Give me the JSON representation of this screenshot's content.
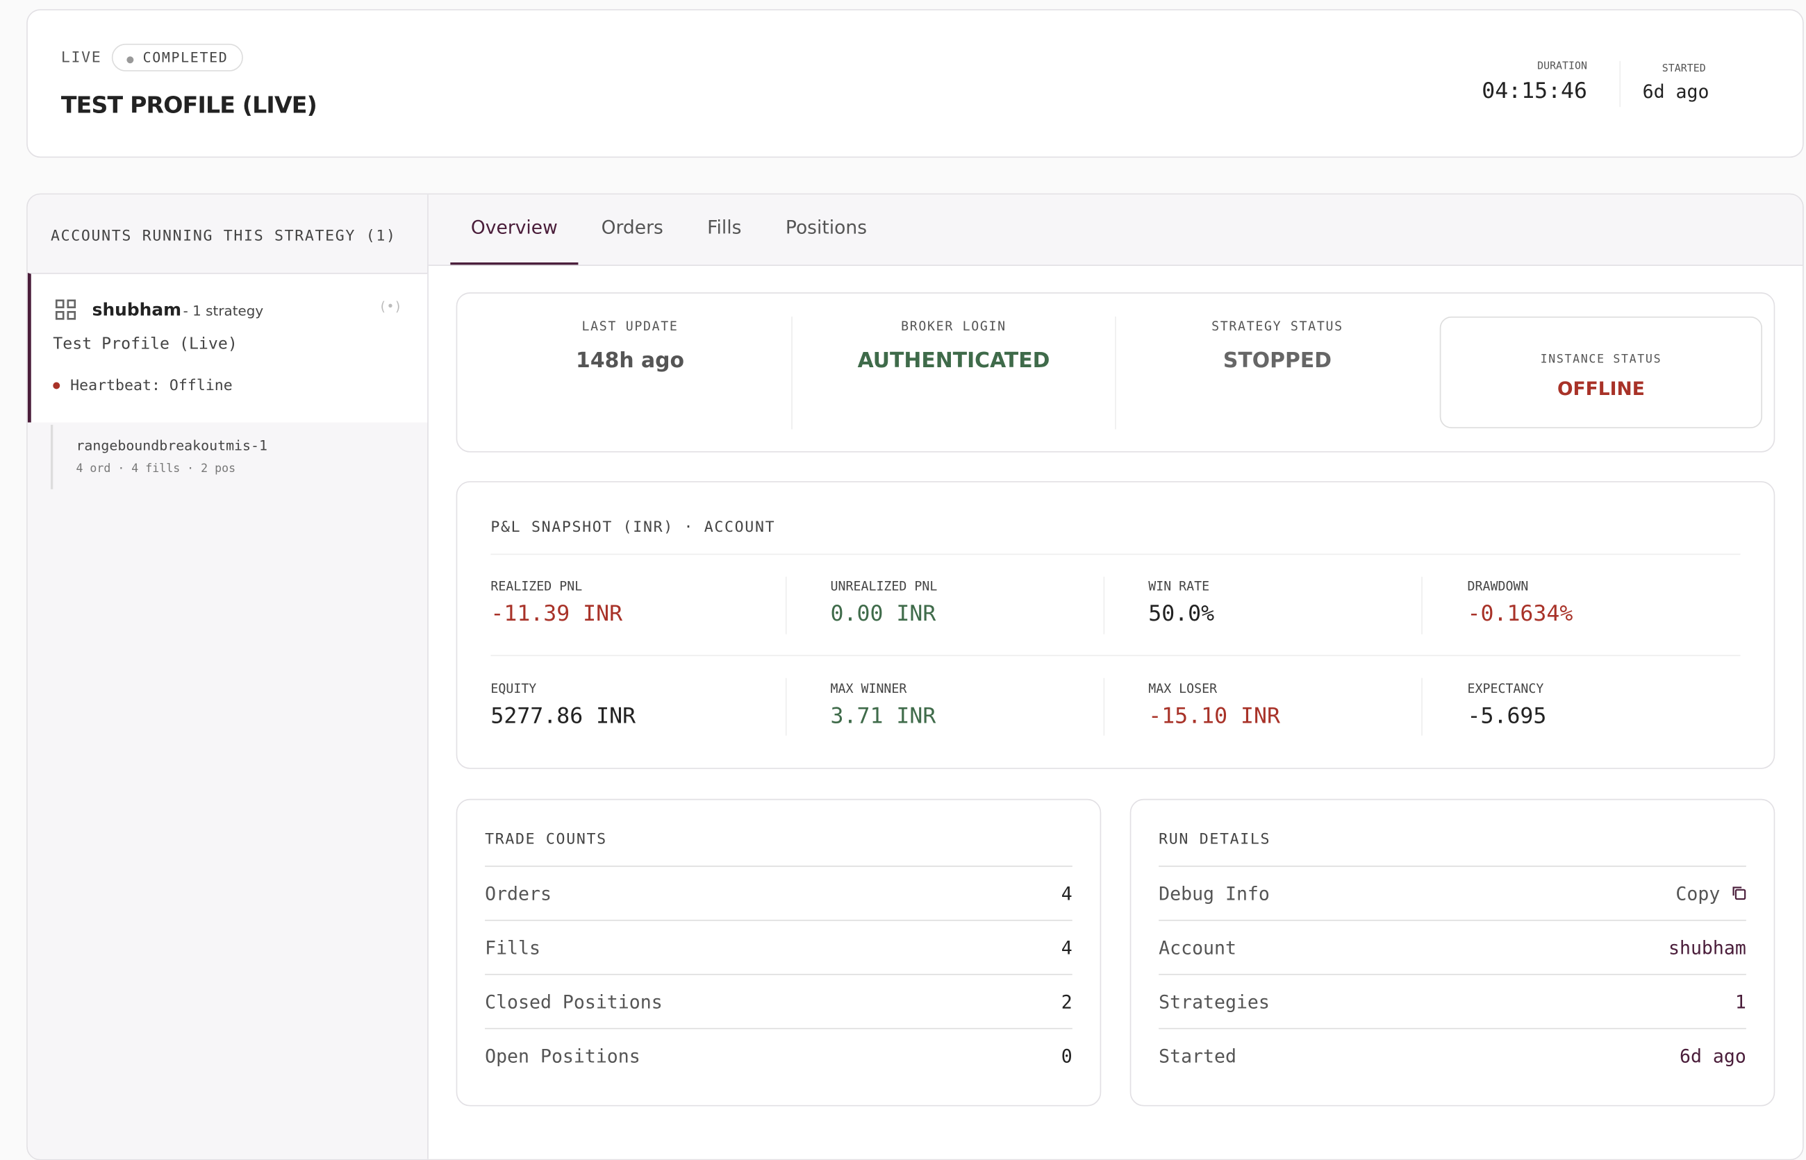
{
  "header": {
    "mode": "LIVE",
    "status": "COMPLETED",
    "title": "TEST PROFILE (LIVE)",
    "duration_label": "DURATION",
    "duration": "04:15:46",
    "started_label": "STARTED",
    "started": "6d ago"
  },
  "sidebar": {
    "title": "ACCOUNTS RUNNING THIS STRATEGY (1)",
    "account": {
      "name": "shubham",
      "meta": "- 1 strategy",
      "profile": "Test Profile (Live)",
      "heartbeat": "Heartbeat: Offline"
    },
    "strategy": {
      "name": "rangeboundbreakoutmis-1",
      "meta": "4 ord · 4 fills · 2 pos"
    }
  },
  "tabs": [
    "Overview",
    "Orders",
    "Fills",
    "Positions"
  ],
  "status_cards": [
    {
      "label": "LAST UPDATE",
      "value": "148h ago"
    },
    {
      "label": "BROKER LOGIN",
      "value": "AUTHENTICATED"
    },
    {
      "label": "STRATEGY STATUS",
      "value": "STOPPED"
    },
    {
      "label": "INSTANCE STATUS",
      "value": "OFFLINE"
    }
  ],
  "pnl": {
    "title": "P&L SNAPSHOT (INR) · ACCOUNT",
    "metrics": [
      {
        "label": "REALIZED PNL",
        "value": "-11.39 INR"
      },
      {
        "label": "UNREALIZED PNL",
        "value": "0.00 INR"
      },
      {
        "label": "WIN RATE",
        "value": "50.0%"
      },
      {
        "label": "DRAWDOWN",
        "value": "-0.1634%"
      },
      {
        "label": "EQUITY",
        "value": "5277.86 INR"
      },
      {
        "label": "MAX WINNER",
        "value": "3.71 INR"
      },
      {
        "label": "MAX LOSER",
        "value": "-15.10 INR"
      },
      {
        "label": "EXPECTANCY",
        "value": "-5.695"
      }
    ]
  },
  "trade_counts": {
    "title": "TRADE COUNTS",
    "rows": [
      {
        "label": "Orders",
        "value": 4
      },
      {
        "label": "Fills",
        "value": 4
      },
      {
        "label": "Closed Positions",
        "value": 2
      },
      {
        "label": "Open Positions",
        "value": 0
      }
    ]
  },
  "run_details": {
    "title": "RUN DETAILS",
    "rows": [
      {
        "label": "Debug Info",
        "value": "Copy"
      },
      {
        "label": "Account",
        "value": "shubham"
      },
      {
        "label": "Strategies",
        "value": 1
      },
      {
        "label": "Started",
        "value": "6d ago"
      }
    ]
  }
}
